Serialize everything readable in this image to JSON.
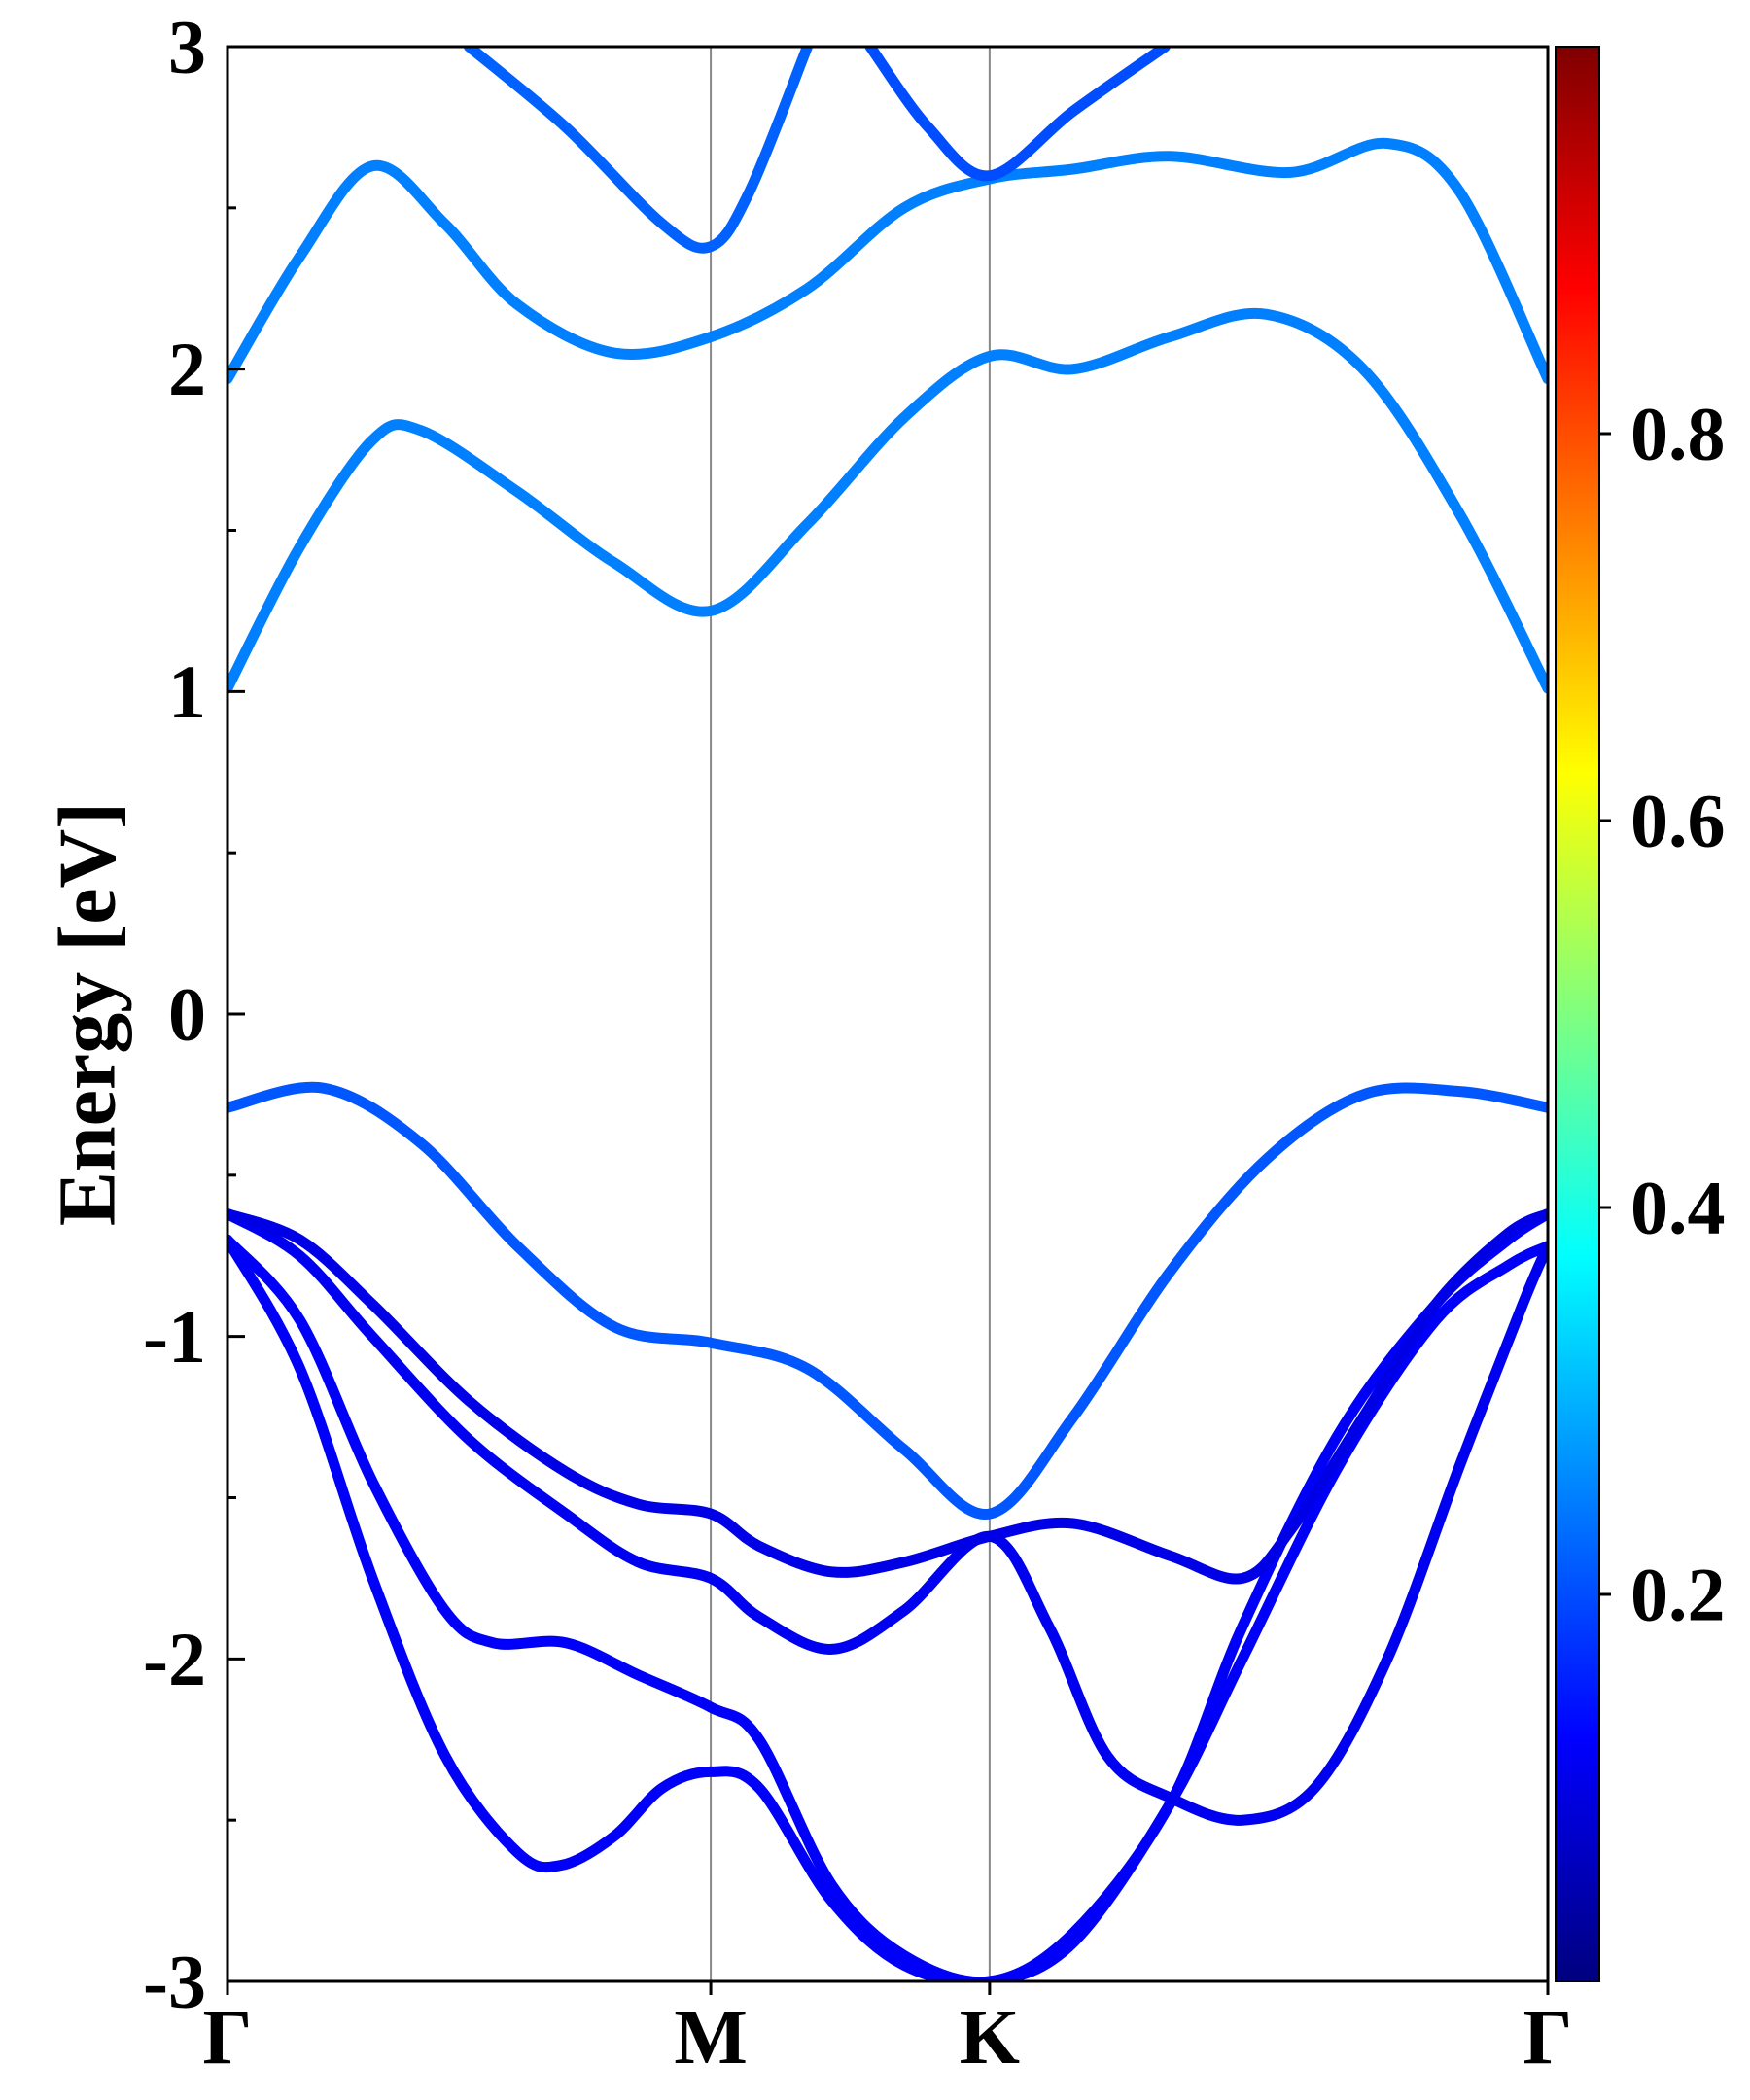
{
  "chart_data": {
    "type": "line",
    "title": "",
    "xlabel": "",
    "ylabel": "Energy [eV]",
    "ylim": [
      -3,
      3
    ],
    "yticks": [
      "3",
      "2",
      "1",
      "0",
      "-1",
      "-2",
      "-3"
    ],
    "ytick_values": [
      3,
      2,
      1,
      0,
      -1,
      -2,
      -3
    ],
    "xlim": [
      0,
      2.732
    ],
    "high_symmetry_points": [
      {
        "label": "Γ",
        "x": 0
      },
      {
        "label": "M",
        "x": 1.0
      },
      {
        "label": "K",
        "x": 1.577
      },
      {
        "label": "Γ",
        "x": 2.732
      }
    ],
    "colorbar": {
      "colormap": "jet",
      "range": [
        0,
        1
      ],
      "tick_labels": [
        "0.8",
        "0.6",
        "0.4",
        "0.2"
      ],
      "tick_values": [
        0.8,
        0.6,
        0.4,
        0.2
      ],
      "stops": [
        "#00007f",
        "#0000ff",
        "#007fff",
        "#00ffff",
        "#7fff7f",
        "#ffff00",
        "#ff7f00",
        "#ff0000",
        "#7f0000"
      ]
    },
    "series": [
      {
        "name": "band-1",
        "weight": 0.12,
        "points": [
          [
            0,
            -0.7
          ],
          [
            0.15,
            -1.1
          ],
          [
            0.3,
            -1.75
          ],
          [
            0.45,
            -2.3
          ],
          [
            0.6,
            -2.6
          ],
          [
            0.69,
            -2.64
          ],
          [
            0.8,
            -2.55
          ],
          [
            0.9,
            -2.4
          ],
          [
            1.0,
            -2.35
          ],
          [
            1.1,
            -2.4
          ],
          [
            1.25,
            -2.75
          ],
          [
            1.4,
            -2.95
          ],
          [
            1.577,
            -3.0
          ],
          [
            1.75,
            -2.88
          ],
          [
            1.95,
            -2.45
          ],
          [
            2.1,
            -2.0
          ],
          [
            2.3,
            -1.4
          ],
          [
            2.5,
            -0.95
          ],
          [
            2.65,
            -0.78
          ],
          [
            2.732,
            -0.72
          ]
        ]
      },
      {
        "name": "band-2",
        "weight": 0.12,
        "points": [
          [
            0,
            -0.7
          ],
          [
            0.15,
            -0.95
          ],
          [
            0.3,
            -1.45
          ],
          [
            0.45,
            -1.85
          ],
          [
            0.55,
            -1.95
          ],
          [
            0.7,
            -1.95
          ],
          [
            0.85,
            -2.05
          ],
          [
            1.0,
            -2.15
          ],
          [
            1.1,
            -2.25
          ],
          [
            1.25,
            -2.7
          ],
          [
            1.4,
            -2.92
          ],
          [
            1.577,
            -3.0
          ],
          [
            1.75,
            -2.85
          ],
          [
            1.95,
            -2.45
          ],
          [
            2.1,
            -1.9
          ],
          [
            2.3,
            -1.3
          ],
          [
            2.5,
            -0.9
          ],
          [
            2.65,
            -0.7
          ],
          [
            2.732,
            -0.62
          ]
        ]
      },
      {
        "name": "band-3",
        "weight": 0.11,
        "points": [
          [
            0,
            -0.62
          ],
          [
            0.15,
            -0.75
          ],
          [
            0.3,
            -1.0
          ],
          [
            0.5,
            -1.32
          ],
          [
            0.7,
            -1.55
          ],
          [
            0.85,
            -1.7
          ],
          [
            1.0,
            -1.75
          ],
          [
            1.1,
            -1.87
          ],
          [
            1.25,
            -1.97
          ],
          [
            1.4,
            -1.85
          ],
          [
            1.577,
            -1.62
          ],
          [
            1.7,
            -1.9
          ],
          [
            1.82,
            -2.3
          ],
          [
            1.95,
            -2.43
          ],
          [
            2.1,
            -2.5
          ],
          [
            2.25,
            -2.4
          ],
          [
            2.4,
            -2.0
          ],
          [
            2.55,
            -1.4
          ],
          [
            2.68,
            -0.9
          ],
          [
            2.732,
            -0.72
          ]
        ]
      },
      {
        "name": "band-4",
        "weight": 0.1,
        "points": [
          [
            0,
            -0.62
          ],
          [
            0.15,
            -0.7
          ],
          [
            0.3,
            -0.9
          ],
          [
            0.5,
            -1.2
          ],
          [
            0.7,
            -1.42
          ],
          [
            0.85,
            -1.52
          ],
          [
            1.0,
            -1.55
          ],
          [
            1.1,
            -1.65
          ],
          [
            1.25,
            -1.73
          ],
          [
            1.4,
            -1.7
          ],
          [
            1.577,
            -1.62
          ],
          [
            1.75,
            -1.58
          ],
          [
            1.95,
            -1.68
          ],
          [
            2.1,
            -1.75
          ],
          [
            2.2,
            -1.6
          ],
          [
            2.35,
            -1.25
          ],
          [
            2.5,
            -0.9
          ],
          [
            2.65,
            -0.68
          ],
          [
            2.732,
            -0.62
          ]
        ]
      },
      {
        "name": "band-5",
        "weight": 0.21,
        "points": [
          [
            0,
            -0.29
          ],
          [
            0.2,
            -0.23
          ],
          [
            0.4,
            -0.4
          ],
          [
            0.6,
            -0.72
          ],
          [
            0.8,
            -0.97
          ],
          [
            1.0,
            -1.02
          ],
          [
            1.2,
            -1.1
          ],
          [
            1.4,
            -1.35
          ],
          [
            1.577,
            -1.55
          ],
          [
            1.75,
            -1.25
          ],
          [
            1.95,
            -0.8
          ],
          [
            2.15,
            -0.45
          ],
          [
            2.35,
            -0.25
          ],
          [
            2.55,
            -0.24
          ],
          [
            2.732,
            -0.29
          ]
        ]
      },
      {
        "name": "band-6",
        "weight": 0.25,
        "points": [
          [
            0,
            1.01
          ],
          [
            0.15,
            1.45
          ],
          [
            0.3,
            1.78
          ],
          [
            0.4,
            1.81
          ],
          [
            0.6,
            1.62
          ],
          [
            0.8,
            1.4
          ],
          [
            1.0,
            1.25
          ],
          [
            1.2,
            1.52
          ],
          [
            1.4,
            1.85
          ],
          [
            1.577,
            2.04
          ],
          [
            1.75,
            2.0
          ],
          [
            1.95,
            2.1
          ],
          [
            2.15,
            2.17
          ],
          [
            2.35,
            2.0
          ],
          [
            2.55,
            1.55
          ],
          [
            2.732,
            1.01
          ]
        ]
      },
      {
        "name": "band-7",
        "weight": 0.25,
        "points": [
          [
            0,
            1.97
          ],
          [
            0.15,
            2.35
          ],
          [
            0.3,
            2.63
          ],
          [
            0.45,
            2.45
          ],
          [
            0.6,
            2.2
          ],
          [
            0.8,
            2.05
          ],
          [
            1.0,
            2.1
          ],
          [
            1.2,
            2.25
          ],
          [
            1.4,
            2.5
          ],
          [
            1.577,
            2.59
          ],
          [
            1.75,
            2.62
          ],
          [
            1.95,
            2.66
          ],
          [
            2.2,
            2.61
          ],
          [
            2.4,
            2.7
          ],
          [
            2.55,
            2.55
          ],
          [
            2.732,
            1.97
          ]
        ]
      },
      {
        "name": "band-8",
        "weight": 0.22,
        "points": [
          [
            0.5,
            3.0
          ],
          [
            0.7,
            2.75
          ],
          [
            0.9,
            2.45
          ],
          [
            1.0,
            2.38
          ],
          [
            1.08,
            2.55
          ],
          [
            1.2,
            3.0
          ]
        ]
      },
      {
        "name": "band-9",
        "weight": 0.2,
        "points": [
          [
            1.33,
            3.0
          ],
          [
            1.45,
            2.75
          ],
          [
            1.577,
            2.6
          ],
          [
            1.75,
            2.8
          ],
          [
            1.94,
            3.0
          ]
        ]
      }
    ]
  }
}
